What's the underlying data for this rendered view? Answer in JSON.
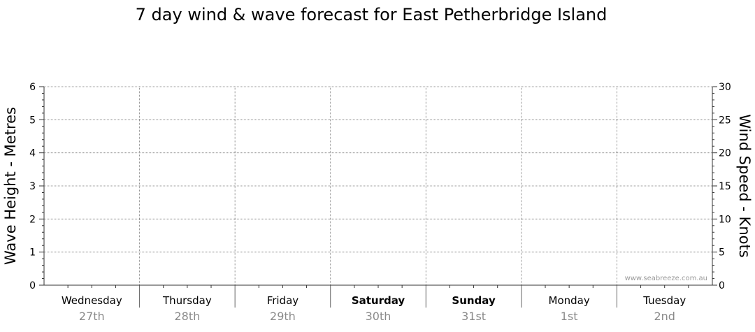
{
  "chart_data": {
    "type": "line",
    "title": "7 day wind & wave forecast for East Petherbridge Island",
    "ylabel": "Wave Height - Metres",
    "y2label": "Wind Speed - Knots",
    "ylim": [
      0,
      6
    ],
    "y2lim": [
      0,
      30
    ],
    "yticks": [
      "0",
      "1",
      "2",
      "3",
      "4",
      "5",
      "6"
    ],
    "y2ticks": [
      "0",
      "5",
      "10",
      "15",
      "20",
      "25",
      "30"
    ],
    "days": [
      {
        "name": "Wednesday",
        "date": "27th",
        "bold": false
      },
      {
        "name": "Thursday",
        "date": "28th",
        "bold": false
      },
      {
        "name": "Friday",
        "date": "29th",
        "bold": false
      },
      {
        "name": "Saturday",
        "date": "30th",
        "bold": true
      },
      {
        "name": "Sunday",
        "date": "31st",
        "bold": true
      },
      {
        "name": "Monday",
        "date": "1st",
        "bold": false
      },
      {
        "name": "Tuesday",
        "date": "2nd",
        "bold": false
      }
    ],
    "series": [],
    "grid": true,
    "watermark": "www.seabreeze.com.au"
  }
}
